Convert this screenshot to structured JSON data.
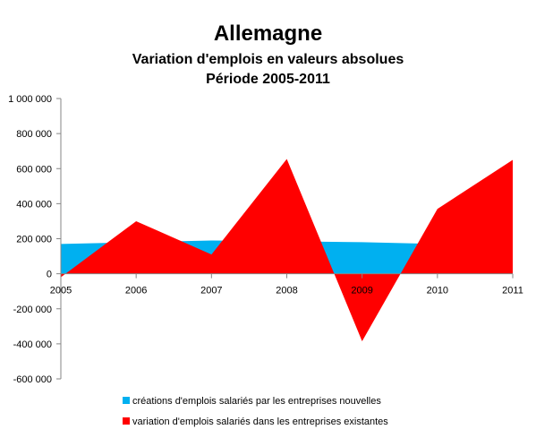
{
  "chart_data": {
    "type": "area",
    "title": "Allemagne",
    "subtitle_1": "Variation d'emplois en valeurs absolues",
    "subtitle_2": "Période 2005-2011",
    "x": [
      "2005",
      "2006",
      "2007",
      "2008",
      "2009",
      "2010",
      "2011"
    ],
    "ylim": [
      -600000,
      1000000
    ],
    "yticks": [
      1000000,
      800000,
      600000,
      400000,
      200000,
      0,
      -200000,
      -400000,
      -600000
    ],
    "ytick_labels": [
      "1 000 000",
      "800 000",
      "600 000",
      "400 000",
      "200 000",
      "0",
      "-200 000",
      "-400 000",
      "-600 000"
    ],
    "grid": false,
    "legend_position": "bottom",
    "series": [
      {
        "name": "créations d'emplois salariés par les entreprises nouvelles",
        "color": "#00B0F0",
        "values": [
          170000,
          180000,
          190000,
          185000,
          180000,
          170000,
          170000
        ]
      },
      {
        "name": "variation d'emplois salariés dans les entreprises existantes",
        "color": "#FF0000",
        "values": [
          -20000,
          300000,
          110000,
          655000,
          -385000,
          370000,
          650000
        ]
      }
    ]
  }
}
